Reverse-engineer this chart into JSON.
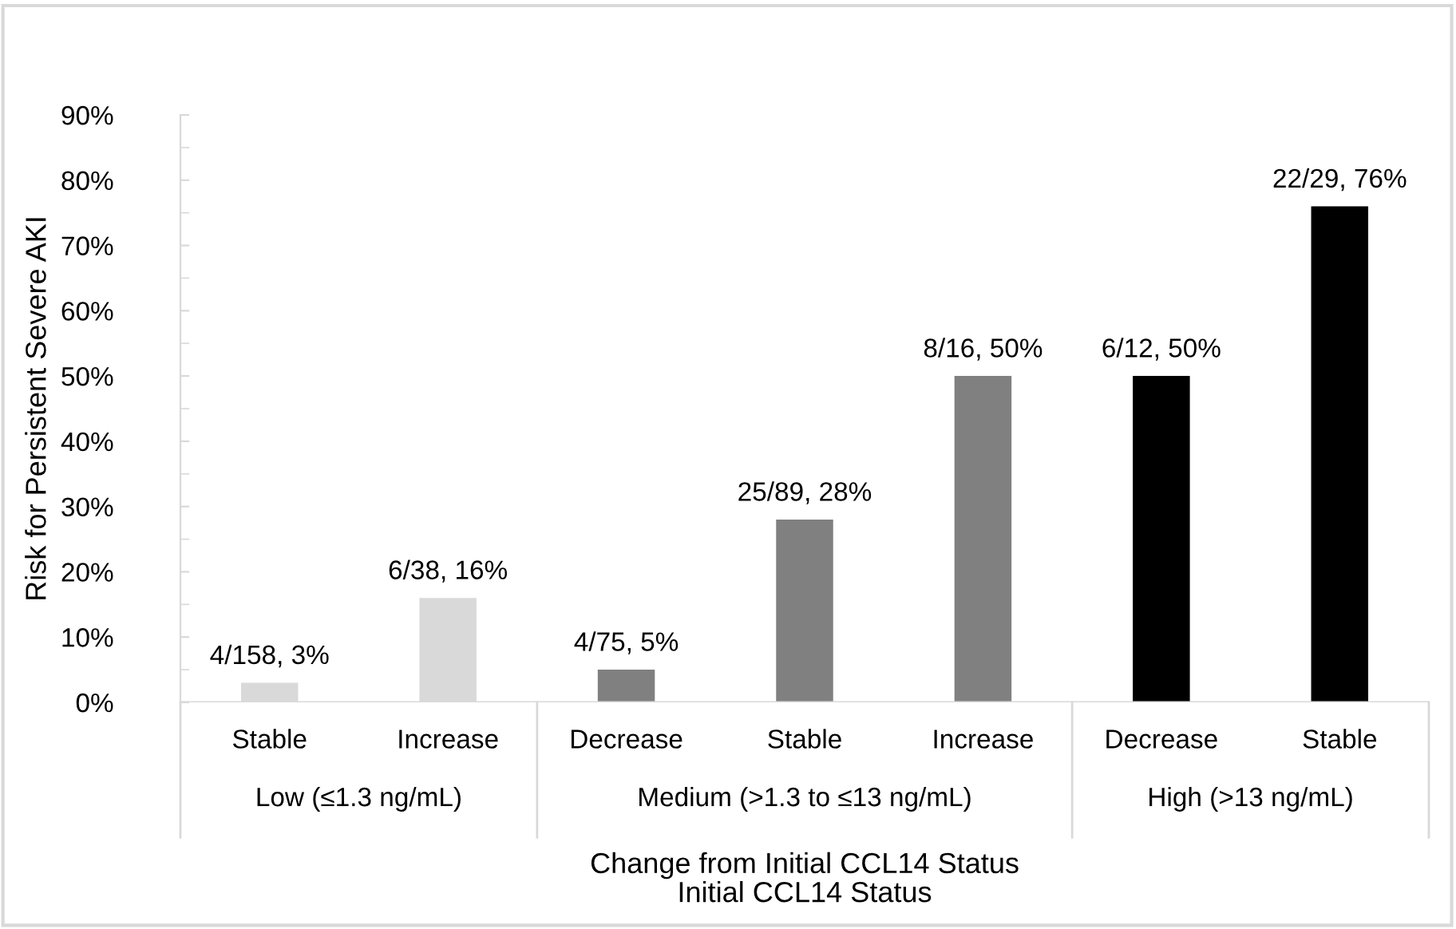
{
  "chart_data": {
    "type": "bar",
    "ylabel": "Risk for Persistent Severe AKI",
    "xlabel": "Change from Initial CCL14 Status\nInitial CCL14 Status",
    "categories": [
      "Stable",
      "Increase",
      "Decrease",
      "Stable",
      "Increase",
      "Decrease",
      "Stable"
    ],
    "values": [
      3,
      16,
      5,
      28,
      50,
      50,
      76
    ],
    "colors": [
      "#d9d9d9",
      "#d9d9d9",
      "#808080",
      "#808080",
      "#808080",
      "#000000",
      "#000000"
    ],
    "value_labels": [
      "4/158, 3%",
      "6/38, 16%",
      "4/75, 5%",
      "25/89, 28%",
      "8/16, 50%",
      "6/12, 50%",
      "22/29, 76%"
    ],
    "annotations": [
      "Low (≤1.3 ng/mL)",
      "Medium (>1.3 to ≤13 ng/mL)",
      "High (>13 ng/mL)"
    ],
    "ylim": [
      0,
      90
    ],
    "yticks": [
      {
        "value": 0,
        "label": "0%"
      },
      {
        "value": 10,
        "label": "10%"
      },
      {
        "value": 20,
        "label": "20%"
      },
      {
        "value": 30,
        "label": "30%"
      },
      {
        "value": 40,
        "label": "40%"
      },
      {
        "value": 50,
        "label": "50%"
      },
      {
        "value": 60,
        "label": "60%"
      },
      {
        "value": 70,
        "label": "70%"
      },
      {
        "value": 80,
        "label": "80%"
      },
      {
        "value": 90,
        "label": "90%"
      }
    ],
    "grid": false,
    "legend": false
  }
}
